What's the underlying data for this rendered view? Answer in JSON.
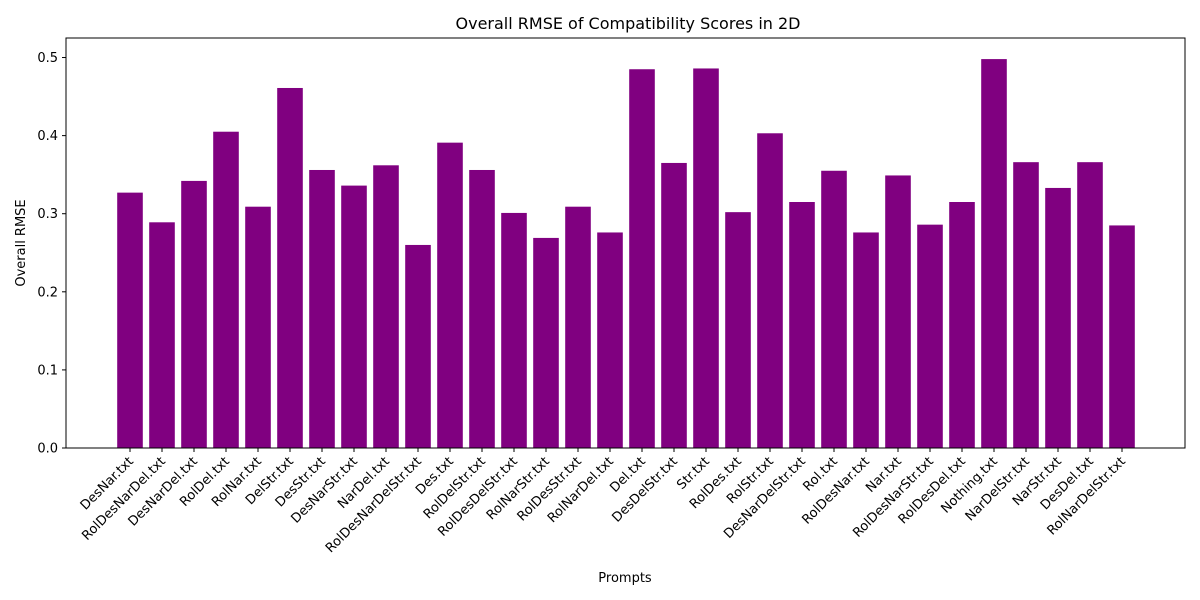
{
  "chart_data": {
    "type": "bar",
    "title": "Overall RMSE of Compatibility Scores in 2D",
    "xlabel": "Prompts",
    "ylabel": "Overall RMSE",
    "ylim": [
      0,
      0.525
    ],
    "yticks": [
      "0.0",
      "0.1",
      "0.2",
      "0.3",
      "0.4",
      "0.5"
    ],
    "grid": false,
    "bar_color": "#800080",
    "categories": [
      "DesNar.txt",
      "RolDesNarDel.txt",
      "DesNarDel.txt",
      "RolDel.txt",
      "RolNar.txt",
      "DelStr.txt",
      "DesStr.txt",
      "DesNarStr.txt",
      "NarDel.txt",
      "RolDesNarDelStr.txt",
      "Des.txt",
      "RolDelStr.txt",
      "RolDesDelStr.txt",
      "RolNarStr.txt",
      "RolDesStr.txt",
      "RolNarDel.txt",
      "Del.txt",
      "DesDelStr.txt",
      "Str.txt",
      "RolDes.txt",
      "RolStr.txt",
      "DesNarDelStr.txt",
      "Rol.txt",
      "RolDesNar.txt",
      "Nar.txt",
      "RolDesNarStr.txt",
      "RolDesDel.txt",
      "Nothing.txt",
      "NarDelStr.txt",
      "NarStr.txt",
      "DesDel.txt",
      "RolNarDelStr.txt"
    ],
    "values": [
      0.327,
      0.289,
      0.342,
      0.405,
      0.309,
      0.461,
      0.356,
      0.336,
      0.362,
      0.26,
      0.391,
      0.356,
      0.301,
      0.269,
      0.309,
      0.276,
      0.485,
      0.365,
      0.486,
      0.302,
      0.403,
      0.315,
      0.355,
      0.276,
      0.349,
      0.286,
      0.315,
      0.498,
      0.366,
      0.333,
      0.366,
      0.285
    ]
  }
}
